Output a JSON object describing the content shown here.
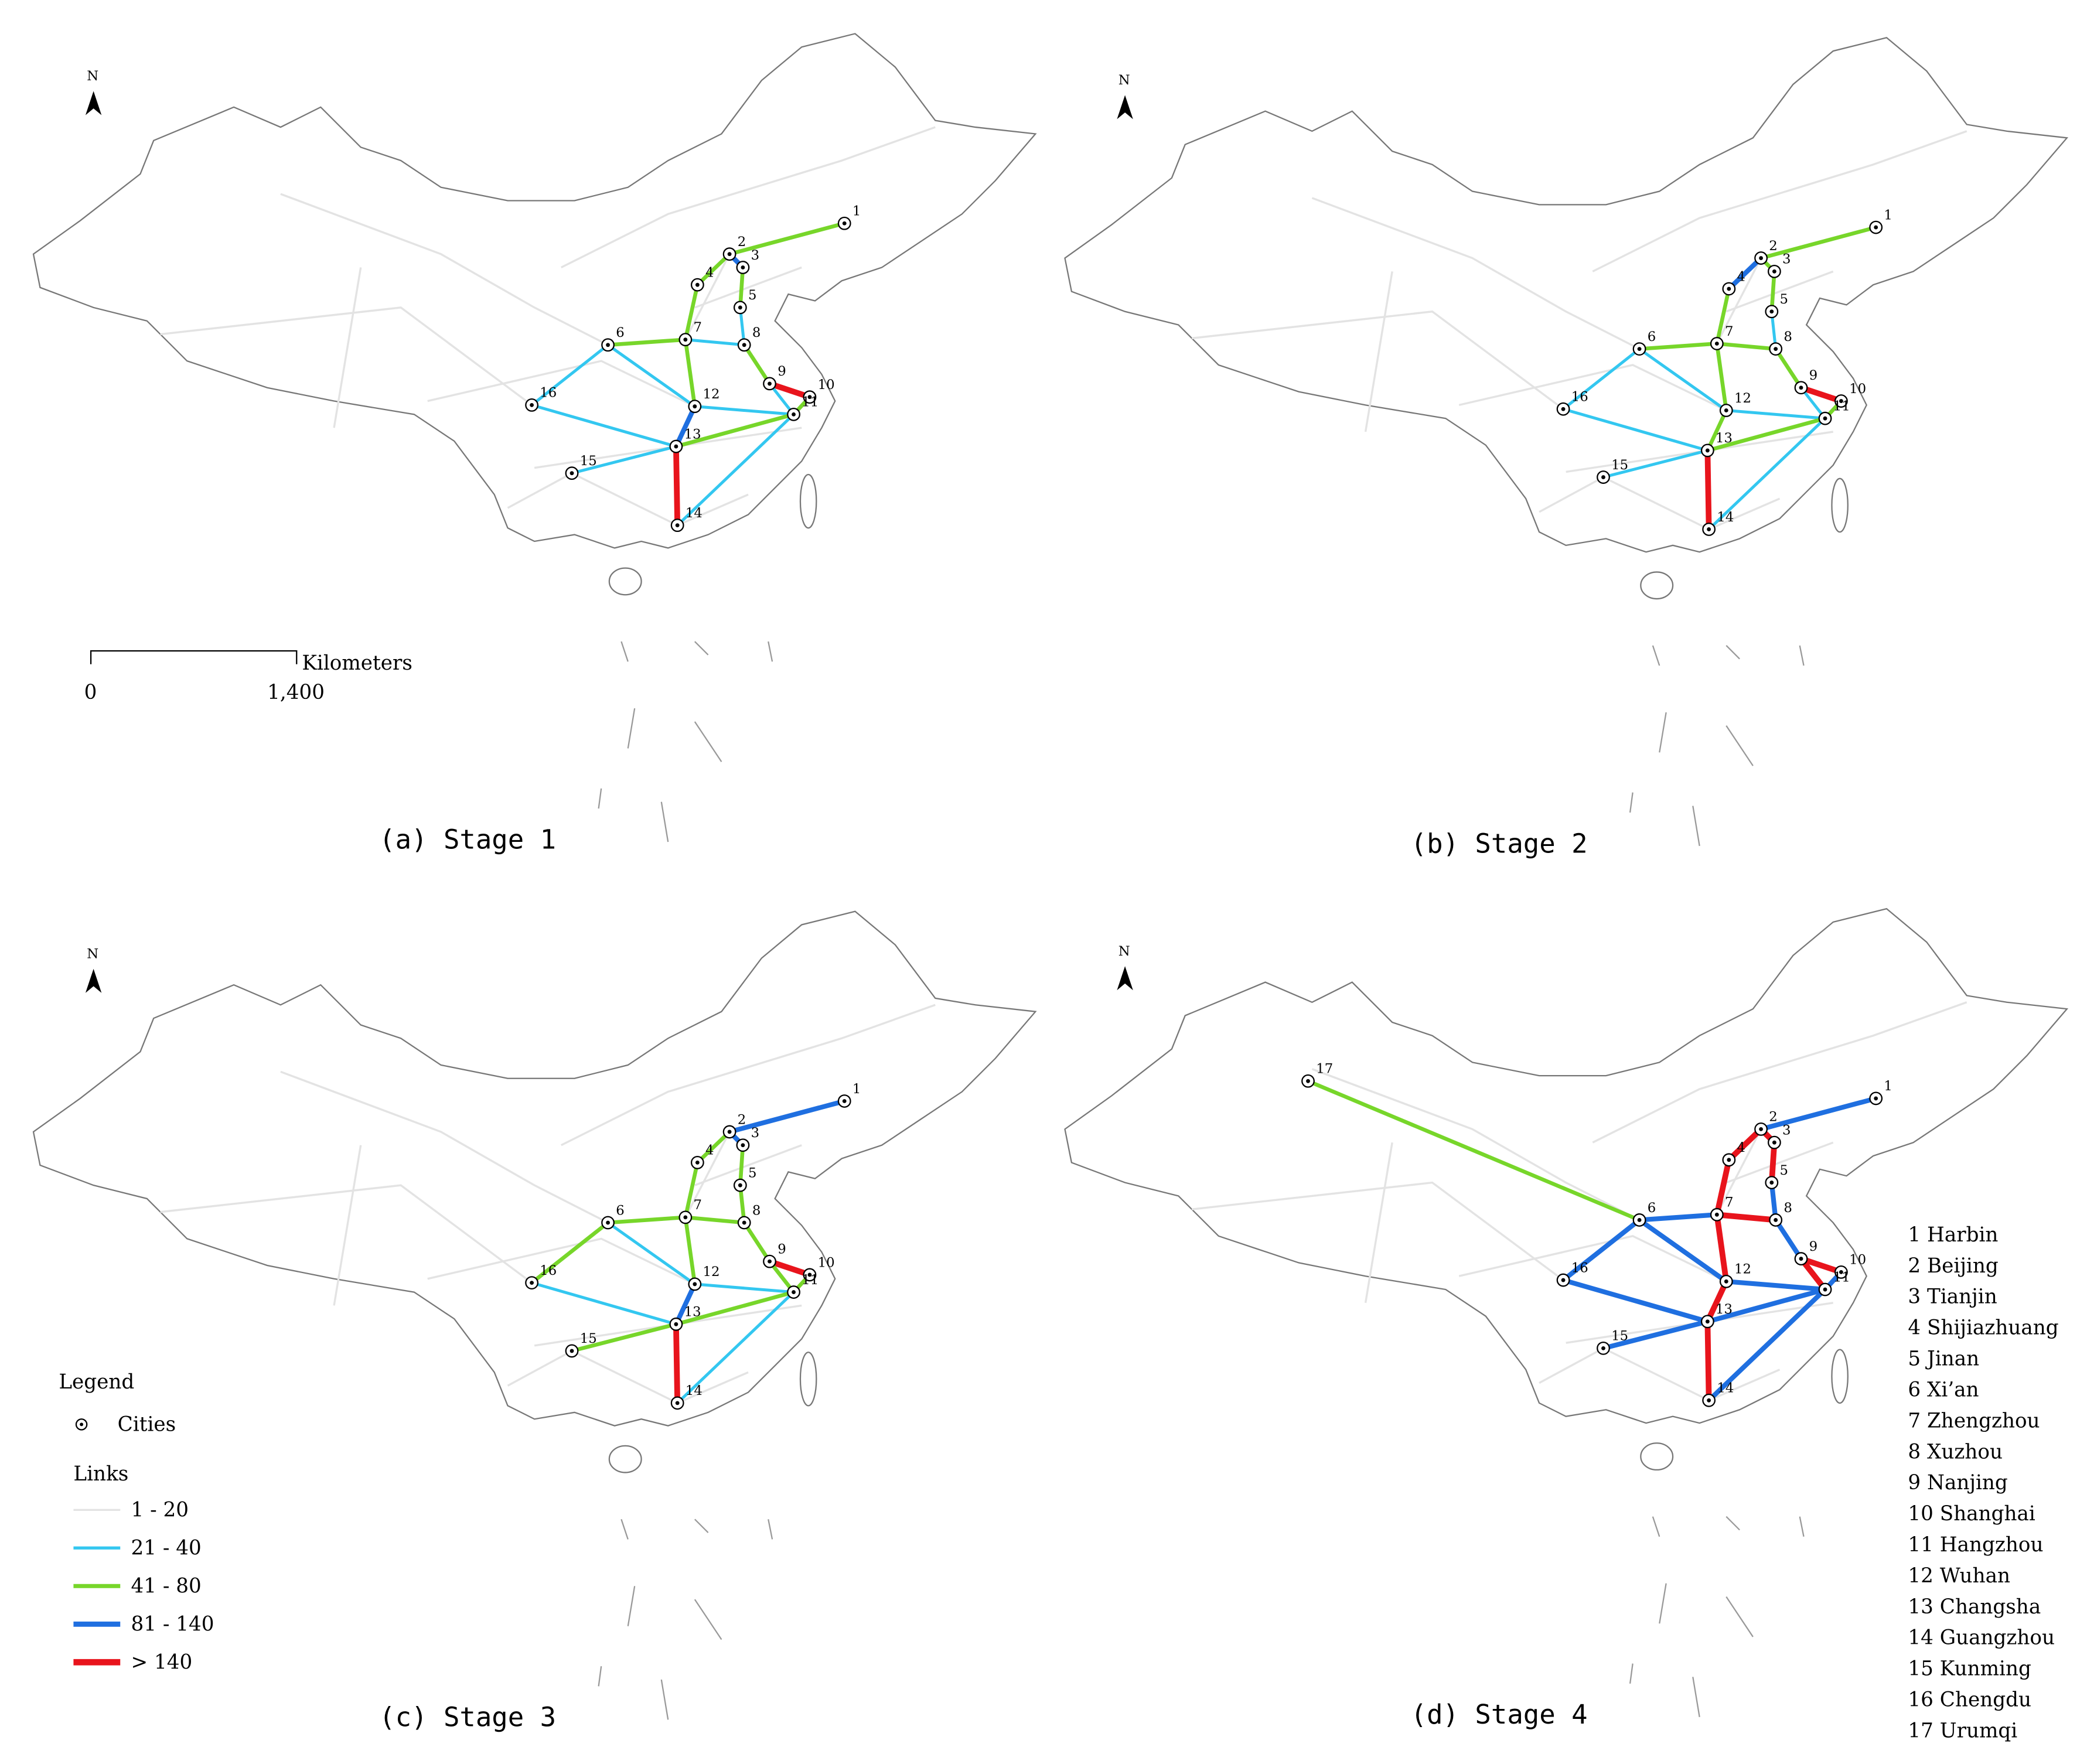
{
  "north": "N",
  "scale_bar": {
    "unit": "Kilometers",
    "labels": [
      "0",
      "1,400"
    ]
  },
  "panels": [
    {
      "caption": "(a) Stage 1",
      "cities": [
        "1",
        "2",
        "3",
        "4",
        "5",
        "6",
        "7",
        "8",
        "9",
        "10",
        "11",
        "12",
        "13",
        "14",
        "15",
        "16"
      ]
    },
    {
      "caption": "(b) Stage 2",
      "cities": [
        "1",
        "2",
        "3",
        "4",
        "5",
        "6",
        "7",
        "8",
        "9",
        "10",
        "11",
        "12",
        "13",
        "14",
        "15",
        "16"
      ]
    },
    {
      "caption": "(c) Stage 3",
      "cities": [
        "1",
        "2",
        "3",
        "4",
        "5",
        "6",
        "7",
        "8",
        "9",
        "10",
        "11",
        "12",
        "13",
        "14",
        "15",
        "16"
      ]
    },
    {
      "caption": "(d) Stage 4",
      "cities": [
        "1",
        "2",
        "3",
        "4",
        "5",
        "6",
        "7",
        "8",
        "9",
        "10",
        "11",
        "12",
        "13",
        "14",
        "15",
        "16",
        "17"
      ]
    }
  ],
  "legend": {
    "title": "Legend",
    "cities": "Cities",
    "links_title": "Links",
    "classes": [
      {
        "label": "1 - 20",
        "color": "#e3e3e3"
      },
      {
        "label": "21 - 40",
        "color": "#33c7f0"
      },
      {
        "label": "41 - 80",
        "color": "#77d62a"
      },
      {
        "label": "81 - 140",
        "color": "#1f6fe0"
      },
      {
        "label": "> 140",
        "color": "#e8141c"
      }
    ]
  },
  "city_list": [
    "1 Harbin",
    "2 Beijing",
    "3 Tianjin",
    "4 Shijiazhuang",
    "5 Jinan",
    "6 Xi’an",
    "7 Zhengzhou",
    "8 Xuzhou",
    "9 Nanjing",
    "10 Shanghai",
    "11 Hangzhou",
    "12 Wuhan",
    "13 Changsha",
    "14 Guangzhou",
    "15 Kunming",
    "16 Chengdu",
    "17 Urumqi"
  ]
}
